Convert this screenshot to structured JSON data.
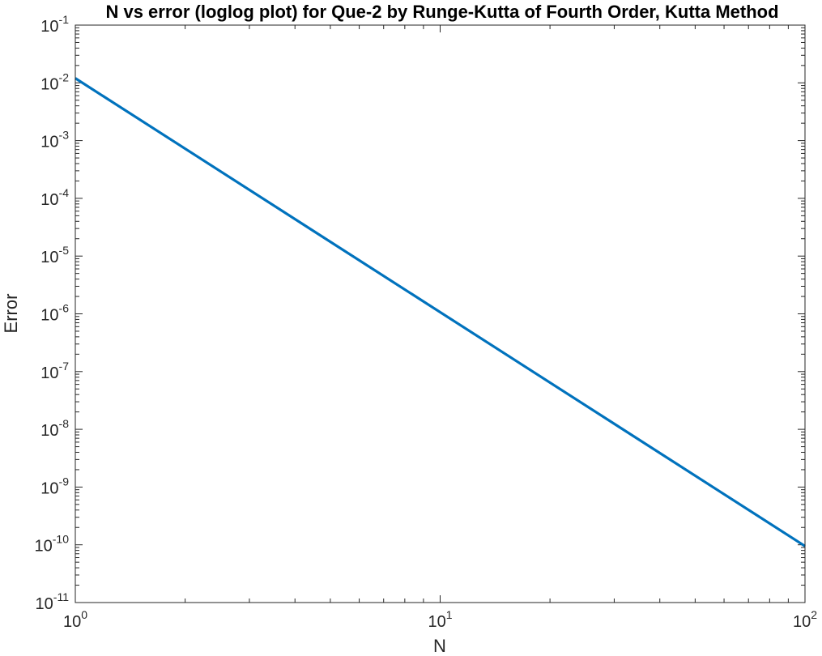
{
  "chart_data": {
    "type": "line",
    "title": "N vs error (loglog plot) for Que-2 by Runge-Kutta of Fourth Order, Kutta Method",
    "xlabel": "N",
    "ylabel": "Error",
    "xscale": "log",
    "yscale": "log",
    "xlim": [
      1,
      100
    ],
    "ylim": [
      1e-11,
      0.1
    ],
    "grid": false,
    "box": true,
    "line_color": "#0072bd",
    "x_ticks": [
      {
        "value": 1,
        "base": "10",
        "exp": "0"
      },
      {
        "value": 10,
        "base": "10",
        "exp": "1"
      },
      {
        "value": 100,
        "base": "10",
        "exp": "2"
      }
    ],
    "y_ticks": [
      {
        "value": 1e-11,
        "base": "10",
        "exp": "-11"
      },
      {
        "value": 1e-10,
        "base": "10",
        "exp": "-10"
      },
      {
        "value": 1e-09,
        "base": "10",
        "exp": "-9"
      },
      {
        "value": 1e-08,
        "base": "10",
        "exp": "-8"
      },
      {
        "value": 1e-07,
        "base": "10",
        "exp": "-7"
      },
      {
        "value": 1e-06,
        "base": "10",
        "exp": "-6"
      },
      {
        "value": 1e-05,
        "base": "10",
        "exp": "-5"
      },
      {
        "value": 0.0001,
        "base": "10",
        "exp": "-4"
      },
      {
        "value": 0.001,
        "base": "10",
        "exp": "-3"
      },
      {
        "value": 0.01,
        "base": "10",
        "exp": "-2"
      },
      {
        "value": 0.1,
        "base": "10",
        "exp": "-1"
      }
    ],
    "series": [
      {
        "x": [
          1,
          100
        ],
        "y": [
          0.012,
          9.5e-11
        ]
      }
    ]
  }
}
